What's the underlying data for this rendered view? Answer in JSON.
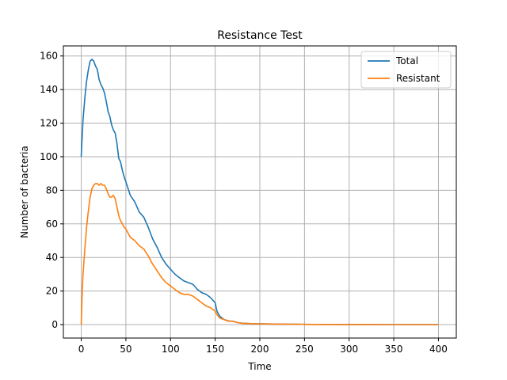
{
  "chart_data": {
    "type": "line",
    "title": "Resistance Test",
    "xlabel": "Time",
    "ylabel": "Number of bacteria",
    "xlim": [
      -20,
      420
    ],
    "ylim": [
      -8,
      166
    ],
    "xticks": [
      0,
      50,
      100,
      150,
      200,
      250,
      300,
      350,
      400
    ],
    "yticks": [
      0,
      20,
      40,
      60,
      80,
      100,
      120,
      140,
      160
    ],
    "grid": true,
    "legend": "top-right",
    "series": [
      {
        "name": "Total",
        "color": "#1f77b4",
        "x": [
          0,
          2,
          4,
          6,
          8,
          10,
          12,
          14,
          16,
          18,
          20,
          22,
          24,
          26,
          28,
          30,
          32,
          34,
          36,
          38,
          40,
          42,
          44,
          46,
          48,
          50,
          55,
          60,
          65,
          70,
          75,
          80,
          85,
          90,
          95,
          100,
          105,
          110,
          115,
          120,
          125,
          130,
          135,
          140,
          145,
          150,
          152,
          155,
          160,
          165,
          170,
          175,
          180,
          190,
          200,
          210,
          220,
          240,
          260,
          300,
          350,
          400
        ],
        "y": [
          100,
          122,
          135,
          145,
          152,
          157,
          158,
          157,
          154,
          152,
          146,
          143,
          141,
          138,
          133,
          127,
          124,
          119,
          116,
          114,
          108,
          99,
          97,
          92,
          88,
          85,
          77,
          73,
          67,
          64,
          58,
          51,
          46,
          40,
          36,
          33,
          30,
          28,
          26,
          25,
          24,
          21,
          19,
          18,
          16,
          13,
          8,
          5,
          3,
          2.2,
          2,
          1.2,
          0.8,
          0.6,
          0.5,
          0.4,
          0.3,
          0.2,
          0.1,
          0.05,
          0,
          0
        ]
      },
      {
        "name": "Resistant",
        "color": "#ff7f0e",
        "x": [
          0,
          1,
          2,
          4,
          6,
          8,
          10,
          12,
          14,
          16,
          18,
          20,
          22,
          24,
          26,
          28,
          30,
          32,
          34,
          36,
          38,
          40,
          42,
          44,
          46,
          48,
          50,
          55,
          60,
          65,
          70,
          75,
          80,
          85,
          90,
          95,
          100,
          105,
          110,
          115,
          120,
          125,
          130,
          135,
          140,
          145,
          150,
          152,
          155,
          160,
          165,
          170,
          175,
          180,
          190,
          200,
          210,
          220,
          240,
          260,
          300,
          350,
          400
        ],
        "y": [
          0,
          18,
          30,
          45,
          58,
          68,
          76,
          81,
          83,
          84,
          84,
          83,
          84,
          83,
          83,
          81,
          78,
          76,
          76,
          77,
          75,
          70,
          65,
          62,
          60,
          58,
          57,
          52,
          50,
          47,
          45,
          41,
          36,
          32,
          28,
          25,
          23,
          21,
          19,
          18,
          18,
          17,
          15,
          13,
          11,
          10,
          8,
          6,
          4,
          3,
          2,
          2,
          1.2,
          0.8,
          0.6,
          0.5,
          0.4,
          0.3,
          0.2,
          0.1,
          0.05,
          0,
          0
        ]
      }
    ]
  }
}
